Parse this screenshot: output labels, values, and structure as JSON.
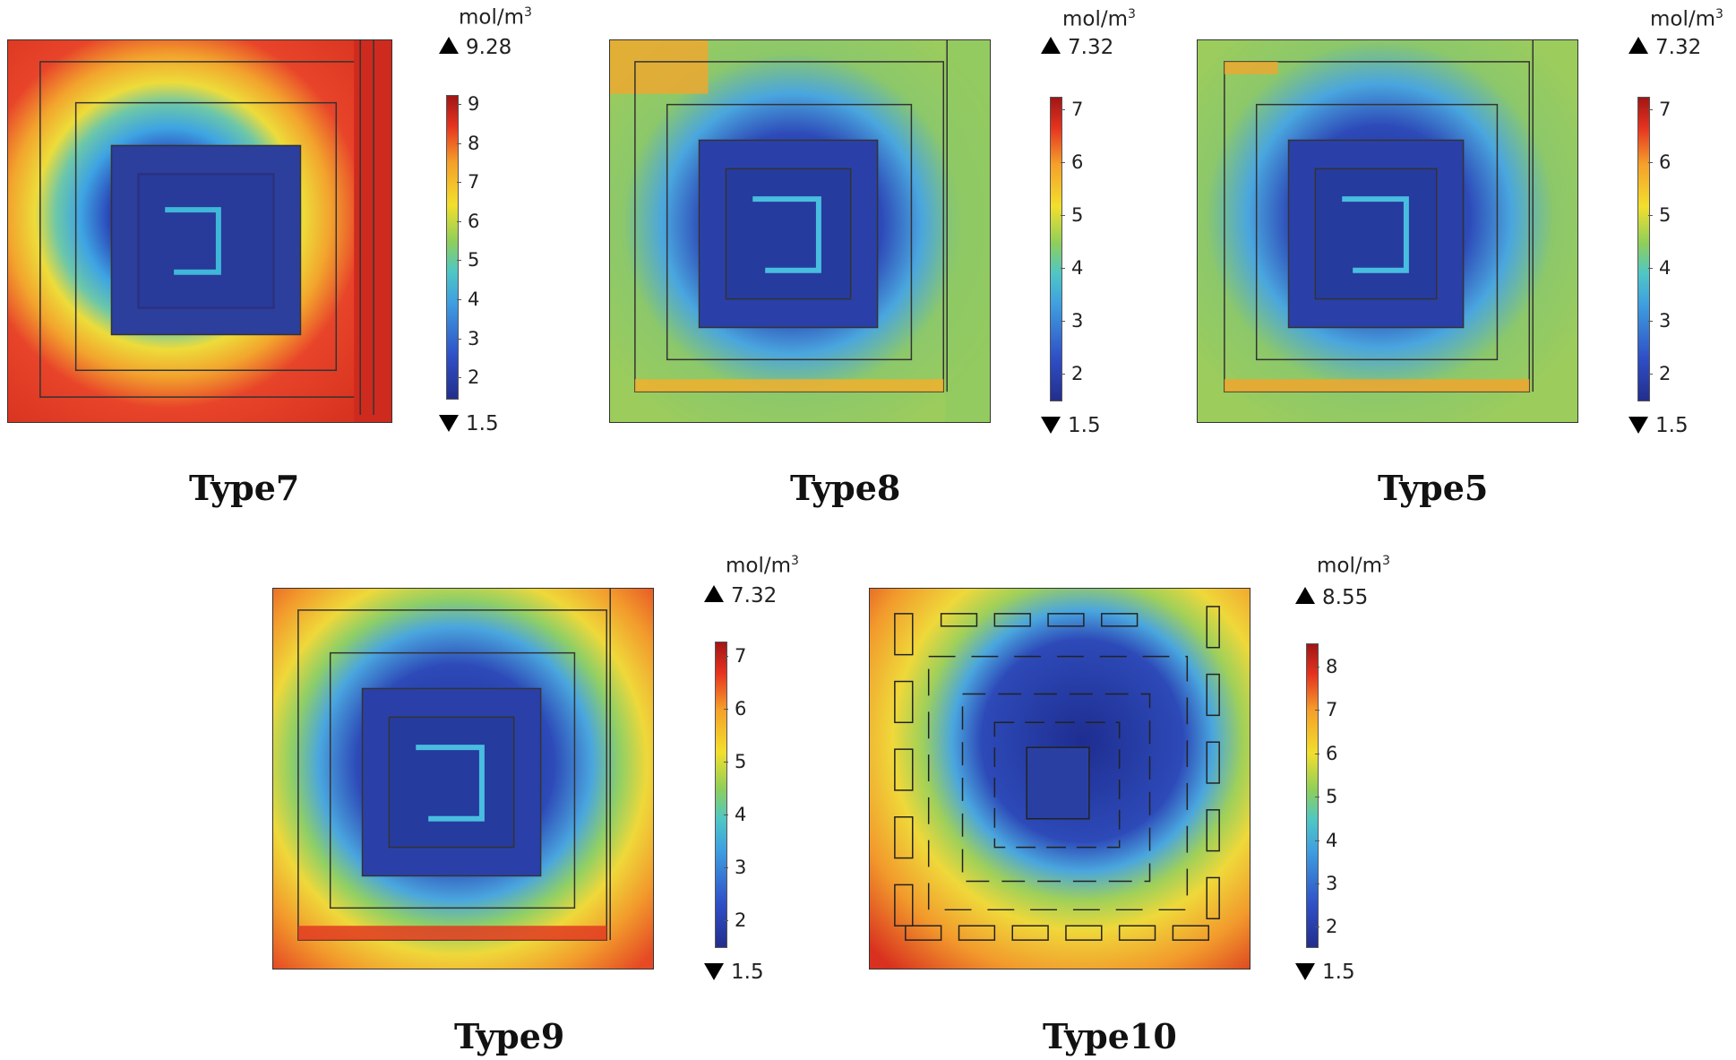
{
  "unit": "mol/m",
  "unit_exp": "3",
  "panels": [
    {
      "label": "Type7",
      "max": "9.28",
      "min": "1.5",
      "ticks": [
        "9",
        "8",
        "7",
        "6",
        "5",
        "4",
        "3",
        "2"
      ]
    },
    {
      "label": "Type8",
      "max": "7.32",
      "min": "1.5",
      "ticks": [
        "7",
        "6",
        "5",
        "4",
        "3",
        "2"
      ]
    },
    {
      "label": "Type5",
      "max": "7.32",
      "min": "1.5",
      "ticks": [
        "7",
        "6",
        "5",
        "4",
        "3",
        "2"
      ]
    },
    {
      "label": "Type9",
      "max": "7.32",
      "min": "1.5",
      "ticks": [
        "7",
        "6",
        "5",
        "4",
        "3",
        "2"
      ]
    },
    {
      "label": "Type10",
      "max": "8.55",
      "min": "1.5",
      "ticks": [
        "8",
        "7",
        "6",
        "5",
        "4",
        "3",
        "2"
      ]
    }
  ]
}
